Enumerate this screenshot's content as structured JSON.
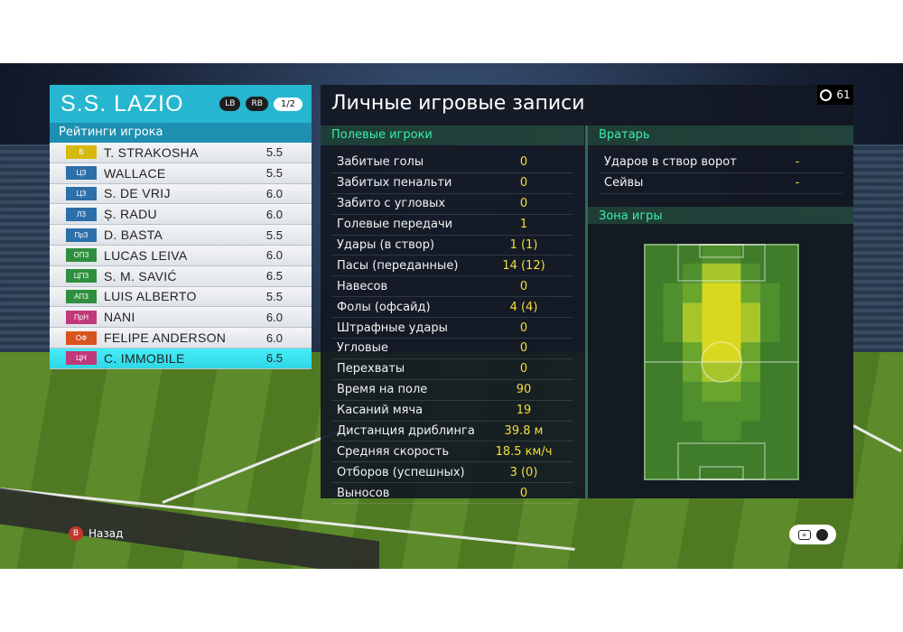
{
  "team": {
    "name": "S.S. LAZIO",
    "btn_lb": "LB",
    "btn_rb": "RB",
    "page": "1/2"
  },
  "ratings_title": "Рейтинги игрока",
  "players": [
    {
      "pos": "В",
      "pos_color": "#d6b90e",
      "name": "T. STRAKOSHA",
      "rating": "5.5"
    },
    {
      "pos": "ЦЗ",
      "pos_color": "#2d6fa8",
      "name": "WALLACE",
      "rating": "5.5"
    },
    {
      "pos": "ЦЗ",
      "pos_color": "#2d6fa8",
      "name": "S. DE VRIJ",
      "rating": "6.0"
    },
    {
      "pos": "ЛЗ",
      "pos_color": "#2d6fa8",
      "name": "Ș. RADU",
      "rating": "6.0"
    },
    {
      "pos": "ПрЗ",
      "pos_color": "#2d6fa8",
      "name": "D. BASTA",
      "rating": "5.5"
    },
    {
      "pos": "ОПЗ",
      "pos_color": "#2f8f3e",
      "name": "LUCAS LEIVA",
      "rating": "6.0"
    },
    {
      "pos": "ЦПЗ",
      "pos_color": "#2f8f3e",
      "name": "S. M. SAVIĆ",
      "rating": "6.5"
    },
    {
      "pos": "АПЗ",
      "pos_color": "#2f8f3e",
      "name": "LUIS ALBERTO",
      "rating": "5.5"
    },
    {
      "pos": "ПрН",
      "pos_color": "#c0397a",
      "name": "NANI",
      "rating": "6.0"
    },
    {
      "pos": "ОФ",
      "pos_color": "#d9531e",
      "name": "FELIPE ANDERSON",
      "rating": "6.0"
    },
    {
      "pos": "ЦН",
      "pos_color": "#c0397a",
      "name": "C. IMMOBILE",
      "rating": "6.5"
    }
  ],
  "selected_player_index": 10,
  "main": {
    "title": "Личные игровые записи",
    "timer": "61",
    "field_header": "Полевые игроки",
    "stats": [
      {
        "label": "Забитые голы",
        "value": "0"
      },
      {
        "label": "Забитых пенальти",
        "value": "0"
      },
      {
        "label": "Забито с угловых",
        "value": "0"
      },
      {
        "label": "Голевые передачи",
        "value": "1"
      },
      {
        "label": "Удары (в створ)",
        "value": "1 (1)"
      },
      {
        "label": "Пасы (переданные)",
        "value": "14 (12)"
      },
      {
        "label": "Навесов",
        "value": "0"
      },
      {
        "label": "Фолы (офсайд)",
        "value": "4 (4)"
      },
      {
        "label": "Штрафные удары",
        "value": "0"
      },
      {
        "label": "Угловые",
        "value": "0"
      },
      {
        "label": "Перехваты",
        "value": "0"
      },
      {
        "label": "Время на поле",
        "value": "90"
      },
      {
        "label": "Касаний мяча",
        "value": "19"
      },
      {
        "label": "Дистанция дриблинга",
        "value": "39.8 м"
      },
      {
        "label": "Средняя скорость",
        "value": "18.5 км/ч"
      },
      {
        "label": "Отборов (успешных)",
        "value": "3 (0)"
      },
      {
        "label": "Выносов",
        "value": "0"
      }
    ],
    "gk_header": "Вратарь",
    "gk_stats": [
      {
        "label": "Ударов в створ ворот",
        "value": "-"
      },
      {
        "label": "Сейвы",
        "value": "-"
      }
    ],
    "zone_header": "Зона игры"
  },
  "heatmap": {
    "cols": 8,
    "rows": 12,
    "levels": [
      [
        0,
        0,
        0,
        1,
        1,
        0,
        0,
        0
      ],
      [
        0,
        0,
        1,
        3,
        3,
        1,
        0,
        0
      ],
      [
        0,
        1,
        2,
        4,
        4,
        2,
        1,
        0
      ],
      [
        0,
        1,
        3,
        4,
        4,
        3,
        1,
        0
      ],
      [
        0,
        1,
        3,
        4,
        4,
        3,
        1,
        0
      ],
      [
        0,
        0,
        2,
        4,
        4,
        2,
        0,
        0
      ],
      [
        0,
        0,
        2,
        3,
        3,
        2,
        0,
        0
      ],
      [
        0,
        0,
        1,
        2,
        2,
        1,
        0,
        0
      ],
      [
        0,
        0,
        1,
        1,
        1,
        1,
        0,
        0
      ],
      [
        0,
        0,
        0,
        1,
        1,
        0,
        0,
        0
      ],
      [
        0,
        0,
        0,
        0,
        0,
        0,
        0,
        0
      ],
      [
        0,
        0,
        0,
        0,
        0,
        0,
        0,
        0
      ]
    ],
    "colors": [
      "#3f7d2a",
      "#4f8f2d",
      "#6aa52e",
      "#a7c52a",
      "#d8d820"
    ]
  },
  "footer": {
    "back_key": "B",
    "back_label": "Назад"
  }
}
